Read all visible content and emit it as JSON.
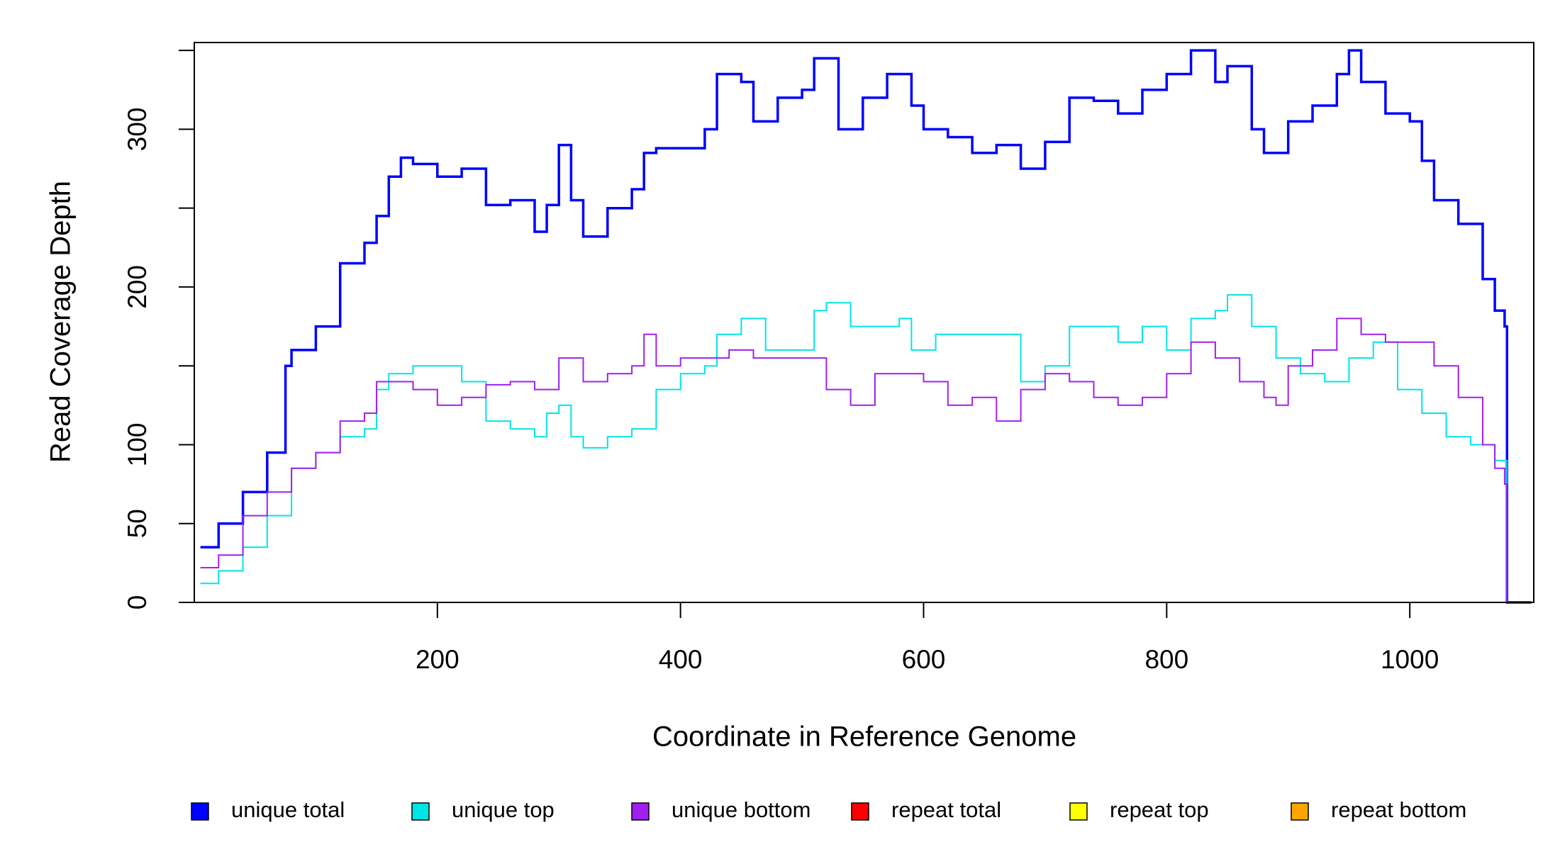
{
  "chart_data": {
    "type": "step",
    "xlabel": "Coordinate in Reference Genome",
    "ylabel": "Read Coverage Depth",
    "xlim": [
      0,
      1102
    ],
    "xticks": [
      200,
      400,
      600,
      800,
      1000
    ],
    "ylim": [
      0,
      355
    ],
    "yticks": [
      0,
      50,
      100,
      200,
      300
    ],
    "yminor_ticks": [
      150,
      250,
      350
    ],
    "legend": "bottom",
    "series": [
      {
        "name": "unique total",
        "color": "#0000ff",
        "x": [
          5,
          20,
          40,
          60,
          75,
          80,
          100,
          120,
          140,
          150,
          160,
          170,
          180,
          200,
          220,
          240,
          260,
          280,
          290,
          300,
          310,
          320,
          340,
          360,
          370,
          380,
          400,
          420,
          430,
          450,
          460,
          480,
          500,
          510,
          530,
          550,
          570,
          590,
          600,
          620,
          640,
          660,
          680,
          700,
          720,
          740,
          760,
          780,
          800,
          820,
          840,
          850,
          870,
          880,
          900,
          920,
          940,
          950,
          960,
          980,
          1000,
          1010,
          1020,
          1040,
          1060,
          1070,
          1078,
          1080,
          1100
        ],
        "values": [
          35,
          50,
          70,
          95,
          150,
          160,
          175,
          215,
          228,
          245,
          270,
          282,
          278,
          270,
          275,
          252,
          255,
          235,
          252,
          290,
          255,
          232,
          250,
          262,
          285,
          288,
          288,
          300,
          335,
          330,
          305,
          320,
          325,
          345,
          300,
          320,
          335,
          315,
          300,
          295,
          285,
          290,
          275,
          292,
          320,
          318,
          310,
          325,
          335,
          350,
          330,
          340,
          300,
          285,
          305,
          315,
          335,
          350,
          330,
          310,
          305,
          280,
          255,
          240,
          205,
          185,
          175,
          0,
          0
        ]
      },
      {
        "name": "unique top",
        "color": "#00e5e5",
        "x": [
          5,
          20,
          40,
          60,
          80,
          100,
          120,
          140,
          150,
          160,
          180,
          200,
          220,
          240,
          260,
          280,
          290,
          300,
          310,
          320,
          340,
          360,
          380,
          400,
          420,
          430,
          450,
          470,
          490,
          510,
          520,
          540,
          560,
          580,
          590,
          610,
          640,
          660,
          680,
          700,
          720,
          740,
          760,
          780,
          800,
          820,
          840,
          850,
          870,
          890,
          910,
          930,
          950,
          970,
          990,
          1010,
          1030,
          1050,
          1070,
          1078,
          1080,
          1100
        ],
        "values": [
          12,
          20,
          35,
          55,
          85,
          95,
          105,
          110,
          135,
          145,
          150,
          150,
          140,
          115,
          110,
          105,
          120,
          125,
          105,
          98,
          105,
          110,
          135,
          145,
          150,
          170,
          180,
          160,
          160,
          185,
          190,
          175,
          175,
          180,
          160,
          170,
          170,
          170,
          140,
          150,
          175,
          175,
          165,
          175,
          160,
          180,
          185,
          195,
          175,
          155,
          145,
          140,
          155,
          165,
          135,
          120,
          105,
          100,
          90,
          90,
          0,
          0
        ]
      },
      {
        "name": "unique bottom",
        "color": "#a020f0",
        "x": [
          5,
          20,
          40,
          60,
          80,
          100,
          120,
          140,
          150,
          160,
          180,
          200,
          220,
          240,
          260,
          280,
          300,
          320,
          340,
          360,
          370,
          380,
          400,
          420,
          440,
          460,
          480,
          500,
          520,
          540,
          560,
          580,
          600,
          620,
          640,
          660,
          680,
          700,
          720,
          740,
          760,
          780,
          800,
          820,
          840,
          860,
          880,
          890,
          900,
          920,
          940,
          960,
          980,
          1000,
          1020,
          1040,
          1060,
          1070,
          1078,
          1080,
          1100
        ],
        "values": [
          22,
          30,
          55,
          70,
          85,
          95,
          115,
          120,
          140,
          140,
          135,
          125,
          130,
          138,
          140,
          135,
          155,
          140,
          145,
          150,
          170,
          150,
          155,
          155,
          160,
          155,
          155,
          155,
          135,
          125,
          145,
          145,
          140,
          125,
          130,
          115,
          135,
          145,
          140,
          130,
          125,
          130,
          145,
          165,
          155,
          140,
          130,
          125,
          150,
          160,
          180,
          170,
          165,
          165,
          150,
          130,
          100,
          85,
          75,
          0,
          0
        ]
      },
      {
        "name": "repeat total",
        "color": "#ff0000",
        "x": [
          0,
          1100
        ],
        "values": [
          0,
          0
        ]
      },
      {
        "name": "repeat top",
        "color": "#ffff00",
        "x": [
          0,
          1100
        ],
        "values": [
          0,
          0
        ]
      },
      {
        "name": "repeat bottom",
        "color": "#ffa500",
        "x": [
          0,
          1100
        ],
        "values": [
          0,
          0
        ]
      }
    ]
  }
}
